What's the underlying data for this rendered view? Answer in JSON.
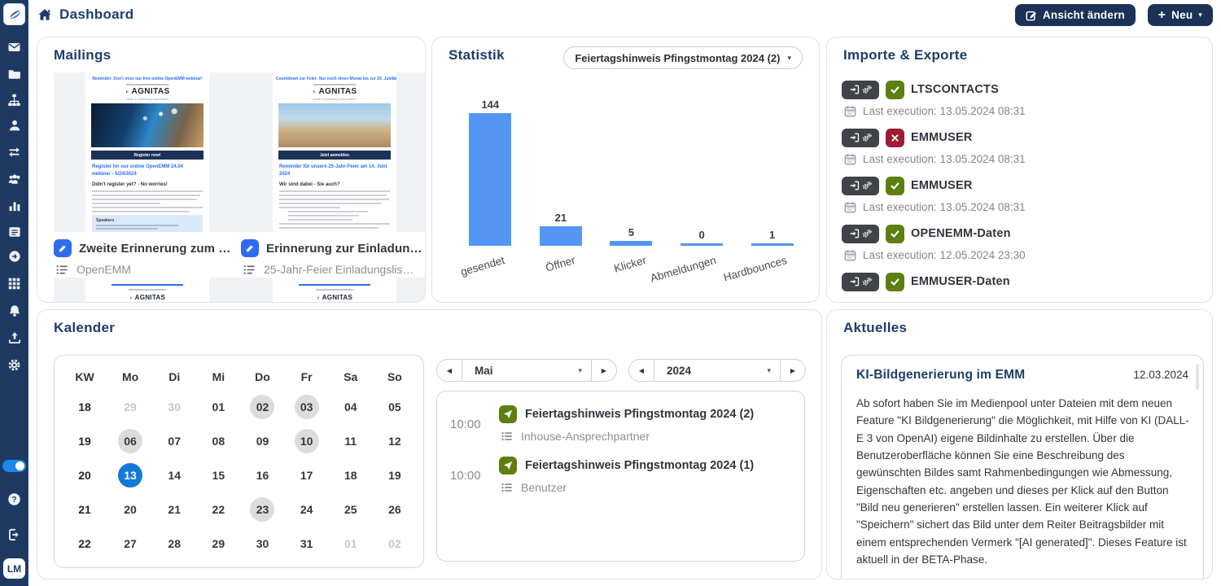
{
  "colors": {
    "sidebar_navy": "#1e3a63",
    "title_navy": "#1d3c6d",
    "button_navy": "#1b3156",
    "accent_blue": "#2e6bf0",
    "bar_blue": "#5596f5",
    "toggle_blue": "#1d87ea",
    "selected_day_blue": "#1478d6",
    "status_green": "#5d7f10",
    "status_red": "#9d1c31",
    "badge_dark": "#404348"
  },
  "topbar": {
    "title": "Dashboard",
    "change_view_label": "Ansicht ändern",
    "new_label": "Neu"
  },
  "sidebar": {
    "avatar": "LM"
  },
  "mailings": {
    "title": "Mailings",
    "items": [
      {
        "title": "Zweite Erinnerung zum …",
        "list": "OpenEMM",
        "preview": {
          "caption": "Reminder: Don't miss our free online OpenEMM webinar!",
          "logo": "AGNITAS",
          "tagline": "email & marketing automation",
          "cta": "Register now!",
          "headline": "Register for our online OpenEMM 24.04 webinar - 5/24/2024",
          "subheadline": "Didn't register yet? - No worries!",
          "section": "Speakers"
        }
      },
      {
        "title": "Erinnerung zur Einladun…",
        "list": "25-Jahr-Feier Einladungslis…",
        "preview": {
          "caption": "Countdown zur Feier: Nur noch einen Monat bis zur 25. Jubiläumsparty!",
          "logo": "AGNITAS",
          "tagline": "email & marketing automation",
          "cta": "Jetzt anmelden",
          "headline": "Reminder für unsere 25-Jahr-Feier am 14. Juni 2024",
          "subheadline": "Wir sind dabei - Sie auch?"
        }
      }
    ],
    "partials": [
      {
        "logo": "AGNITAS",
        "tagline": "email & marketing automation"
      },
      {
        "logo": "AGNITAS",
        "tagline": "email & marketing automation"
      }
    ]
  },
  "statistik": {
    "title": "Statistik",
    "dropdown_value": "Feiertagshinweis Pfingstmontag 2024 (2)"
  },
  "chart_data": {
    "type": "bar",
    "categories": [
      "gesendet",
      "Öffner",
      "Klicker",
      "Abmeldungen",
      "Hardbounces"
    ],
    "values": [
      144,
      21,
      5,
      0,
      1
    ],
    "title": "Statistik",
    "xlabel": "",
    "ylabel": "",
    "ylim": [
      0,
      144
    ],
    "bar_color": "#5596f5",
    "grid": false,
    "legend": "none"
  },
  "imports": {
    "title": "Importe & Exporte",
    "entries": [
      {
        "name": "LTSCONTACTS",
        "status": "success",
        "exec": "Last execution: 13.05.2024 08:31"
      },
      {
        "name": "EMMUSER",
        "status": "error",
        "exec": "Last execution: 13.05.2024 08:31"
      },
      {
        "name": "EMMUSER",
        "status": "success",
        "exec": "Last execution: 13.05.2024 08:31"
      },
      {
        "name": "OPENEMM-Daten",
        "status": "success",
        "exec": "Last execution: 12.05.2024 23:30"
      },
      {
        "name": "EMMUSER-Daten",
        "status": "success"
      }
    ]
  },
  "kalender": {
    "title": "Kalender",
    "header": [
      "KW",
      "Mo",
      "Di",
      "Mi",
      "Do",
      "Fr",
      "Sa",
      "So"
    ],
    "rows": [
      {
        "kw": "18",
        "days": [
          {
            "t": "29",
            "s": "muted"
          },
          {
            "t": "30",
            "s": "muted"
          },
          {
            "t": "01",
            "s": ""
          },
          {
            "t": "02",
            "s": "gray"
          },
          {
            "t": "03",
            "s": "gray"
          },
          {
            "t": "04",
            "s": ""
          },
          {
            "t": "05",
            "s": ""
          }
        ]
      },
      {
        "kw": "19",
        "days": [
          {
            "t": "06",
            "s": "gray"
          },
          {
            "t": "07",
            "s": ""
          },
          {
            "t": "08",
            "s": ""
          },
          {
            "t": "09",
            "s": ""
          },
          {
            "t": "10",
            "s": "gray"
          },
          {
            "t": "11",
            "s": ""
          },
          {
            "t": "12",
            "s": ""
          }
        ]
      },
      {
        "kw": "20",
        "days": [
          {
            "t": "13",
            "s": "blue"
          },
          {
            "t": "14",
            "s": ""
          },
          {
            "t": "15",
            "s": ""
          },
          {
            "t": "16",
            "s": ""
          },
          {
            "t": "17",
            "s": ""
          },
          {
            "t": "18",
            "s": ""
          },
          {
            "t": "19",
            "s": ""
          }
        ]
      },
      {
        "kw": "21",
        "days": [
          {
            "t": "20",
            "s": ""
          },
          {
            "t": "21",
            "s": ""
          },
          {
            "t": "22",
            "s": ""
          },
          {
            "t": "23",
            "s": "gray"
          },
          {
            "t": "24",
            "s": ""
          },
          {
            "t": "25",
            "s": ""
          },
          {
            "t": "26",
            "s": ""
          }
        ]
      },
      {
        "kw": "22",
        "days": [
          {
            "t": "27",
            "s": ""
          },
          {
            "t": "28",
            "s": ""
          },
          {
            "t": "29",
            "s": ""
          },
          {
            "t": "30",
            "s": ""
          },
          {
            "t": "31",
            "s": ""
          },
          {
            "t": "01",
            "s": "muted"
          },
          {
            "t": "02",
            "s": "muted"
          }
        ]
      }
    ],
    "month": "Mai",
    "year": "2024",
    "events": [
      {
        "time": "10:00",
        "title": "Feiertagshinweis Pfingstmontag 2024 (2)",
        "list": "Inhouse-Ansprechpartner"
      },
      {
        "time": "10:00",
        "title": "Feiertagshinweis Pfingstmontag 2024 (1)",
        "list": "Benutzer"
      }
    ]
  },
  "aktuelles": {
    "title": "Aktuelles",
    "news_title": "KI-Bildgenerierung im EMM",
    "date": "12.03.2024",
    "body": "Ab sofort haben Sie im Medienpool unter Dateien mit dem neuen Feature \"KI Bildgenerierung\" die Möglichkeit, mit Hilfe von KI (DALL-E 3 von OpenAI) eigene Bildinhalte zu erstellen. Über die Benutzeroberfläche können Sie eine Beschreibung des gewünschten Bildes samt Rahmenbedingungen wie Abmessung, Eigenschaften etc. angeben und dieses per Klick auf den Button \"Bild neu generieren\" erstellen lassen. Ein weiterer Klick auf \"Speichern\" sichert das Bild unter dem Reiter Beitragsbilder mit einem entsprechenden Vermerk \"[AI generated]\". Dieses Feature ist aktuell in der BETA-Phase."
  }
}
